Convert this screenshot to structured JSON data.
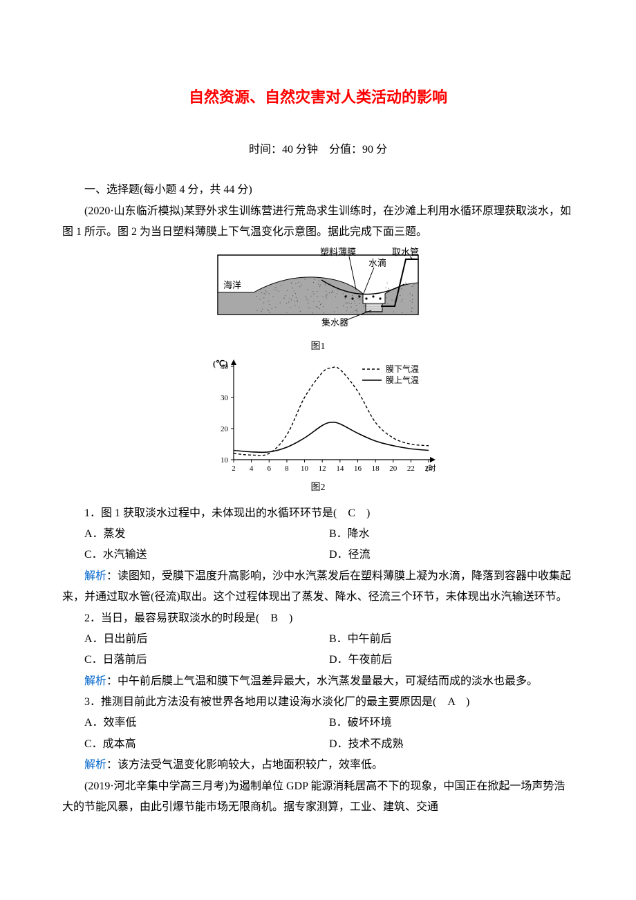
{
  "title": "自然资源、自然灾害对人类活动的影响",
  "meta": "时间：40 分钟　分值：90 分",
  "section": "一、选择题(每小题 4 分，共 44 分)",
  "intro1": "(2020·山东临沂模拟)某野外求生训练营进行荒岛求生训练时，在沙滩上利用水循环原理获取淡水，如图 1 所示。图 2 为当日塑料薄膜上下气温变化示意图。据此完成下面三题。",
  "fig1": {
    "label": "图1",
    "labels": {
      "ocean": "海洋",
      "film": "塑料薄膜",
      "drops": "水滴",
      "pipe": "取水管",
      "collector": "集水器"
    },
    "colors": {
      "frame": "#000000",
      "sand_fill": "#a8a8a8",
      "sea_fill": "#8a8a8a",
      "bg": "#ffffff"
    }
  },
  "fig2": {
    "label": "图2",
    "ylabel": "(℃)",
    "xlabel_unit": "(时)",
    "xlim": [
      2,
      24
    ],
    "ylim": [
      10,
      40
    ],
    "xticks": [
      2,
      4,
      6,
      8,
      10,
      12,
      14,
      16,
      18,
      20,
      22,
      24
    ],
    "yticks": [
      10,
      20,
      30,
      40
    ],
    "legend": {
      "below": "膜下气温",
      "above": "膜上气温"
    },
    "series_below": {
      "dash": "4 3",
      "color": "#000000",
      "data": [
        [
          2,
          12
        ],
        [
          4,
          11.5
        ],
        [
          6,
          12
        ],
        [
          8,
          18
        ],
        [
          10,
          30
        ],
        [
          12,
          38
        ],
        [
          13,
          39.5
        ],
        [
          14,
          39
        ],
        [
          16,
          32
        ],
        [
          18,
          22
        ],
        [
          20,
          17
        ],
        [
          22,
          15
        ],
        [
          24,
          14.5
        ]
      ]
    },
    "series_above": {
      "dash": "none",
      "color": "#000000",
      "data": [
        [
          2,
          13
        ],
        [
          4,
          12.5
        ],
        [
          6,
          12.5
        ],
        [
          8,
          14
        ],
        [
          10,
          17
        ],
        [
          12,
          21
        ],
        [
          13,
          22
        ],
        [
          14,
          21.5
        ],
        [
          16,
          18.5
        ],
        [
          18,
          16
        ],
        [
          20,
          14.5
        ],
        [
          22,
          13.5
        ],
        [
          24,
          13
        ]
      ]
    },
    "axis_color": "#000000",
    "tick_fontsize": 11
  },
  "q1": {
    "stem": "1．图 1 获取淡水过程中，未体现出的水循环环节是(　C　)",
    "A": "A．蒸发",
    "B": "B．降水",
    "C": "C．水汽输送",
    "D": "D．径流",
    "expl_label": "解析",
    "expl": "：读图知，受膜下温度升高影响，沙中水汽蒸发后在塑料薄膜上凝为水滴，降落到容器中收集起来，并通过取水管(径流)取出。这个过程体现出了蒸发、降水、径流三个环节，未体现出水汽输送环节。"
  },
  "q2": {
    "stem": "2．当日，最容易获取淡水的时段是(　B　)",
    "A": "A．日出前后",
    "B": "B．中午前后",
    "C": "C．日落前后",
    "D": "D．午夜前后",
    "expl_label": "解析",
    "expl": "：中午前后膜上气温和膜下气温差异最大，水汽蒸发量最大，可凝结而成的淡水也最多。"
  },
  "q3": {
    "stem": "3．推测目前此方法没有被世界各地用以建设海水淡化厂的最主要原因是(　A　)",
    "A": "A．效率低",
    "B": "B．破坏环境",
    "C": "C．成本高",
    "D": "D．技术不成熟",
    "expl_label": "解析",
    "expl": "：该方法受气温变化影响较大，占地面积较广，效率低。"
  },
  "intro2": "(2019·河北辛集中学高三月考)为遏制单位 GDP 能源消耗居高不下的现象，中国正在掀起一场声势浩大的节能风暴，由此引爆节能市场无限商机。据专家测算，工业、建筑、交通"
}
